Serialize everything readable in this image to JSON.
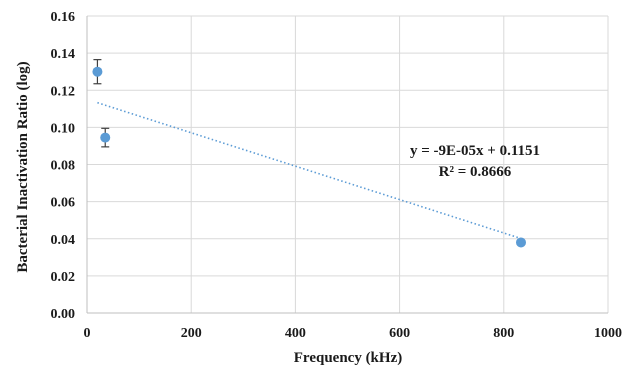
{
  "chart_data": {
    "type": "scatter",
    "xlabel": "Frequency (kHz)",
    "ylabel": "Bacterial Inactivation Ratio  (log)",
    "xlim": [
      0,
      1000
    ],
    "ylim": [
      0,
      0.16
    ],
    "x_ticks": [
      "0",
      "200",
      "400",
      "600",
      "800",
      "1000"
    ],
    "y_ticks": [
      "0.00",
      "0.02",
      "0.04",
      "0.06",
      "0.08",
      "0.10",
      "0.12",
      "0.14",
      "0.16"
    ],
    "grid": true,
    "points": [
      {
        "x": 20,
        "y": 0.13,
        "err": 0.0065
      },
      {
        "x": 35,
        "y": 0.0945,
        "err": 0.005
      },
      {
        "x": 833,
        "y": 0.038,
        "err": 0
      }
    ],
    "trendline": {
      "type": "linear",
      "slope": -9e-05,
      "intercept": 0.1151,
      "x_range": [
        20,
        833
      ],
      "equation": "y = -9E-05x + 0.1151",
      "r_squared": "R² = 0.8666"
    },
    "colors": {
      "marker": "#5b9bd5",
      "trendline": "#5b9bd5",
      "grid": "#d9d9d9",
      "axis": "#bfbfbf",
      "errorbar": "#404040"
    }
  }
}
